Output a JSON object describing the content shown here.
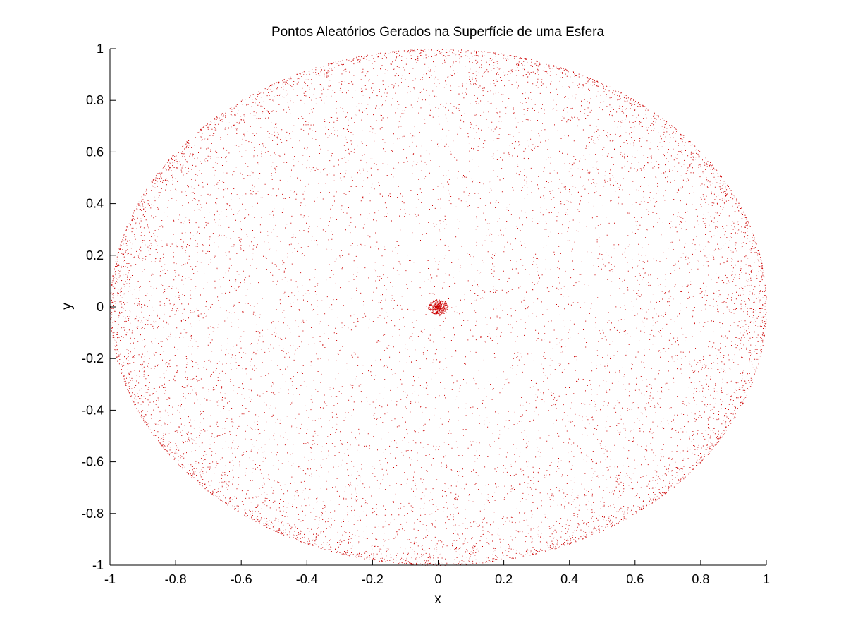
{
  "chart_data": {
    "type": "scatter",
    "title": "Pontos Aleatórios Gerados na Superfície de uma Esfera",
    "xlabel": "x",
    "ylabel": "y",
    "xlim": [
      -1,
      1
    ],
    "ylim": [
      -1,
      1
    ],
    "xticks": [
      "-1",
      "-0.8",
      "-0.6",
      "-0.4",
      "-0.2",
      "0",
      "0.2",
      "0.4",
      "0.6",
      "0.8",
      "1"
    ],
    "yticks": [
      "1",
      "0.8",
      "0.6",
      "0.4",
      "0.2",
      "0",
      "-0.2",
      "-0.4",
      "-0.6",
      "-0.8",
      "-1"
    ],
    "xtick_values": [
      -1,
      -0.8,
      -0.6,
      -0.4,
      -0.2,
      0,
      0.2,
      0.4,
      0.6,
      0.8,
      1
    ],
    "ytick_values": [
      1,
      0.8,
      0.6,
      0.4,
      0.2,
      0,
      -0.2,
      -0.4,
      -0.6,
      -0.8,
      -1
    ],
    "grid": false,
    "box": false,
    "marker": "dot",
    "series": [
      {
        "color": "#cc0000",
        "distribution": "random points on the surface of a unit sphere projected to the x-y plane, filling the unit disk with a dense cluster near the origin",
        "approx_point_count": 10000
      }
    ]
  }
}
